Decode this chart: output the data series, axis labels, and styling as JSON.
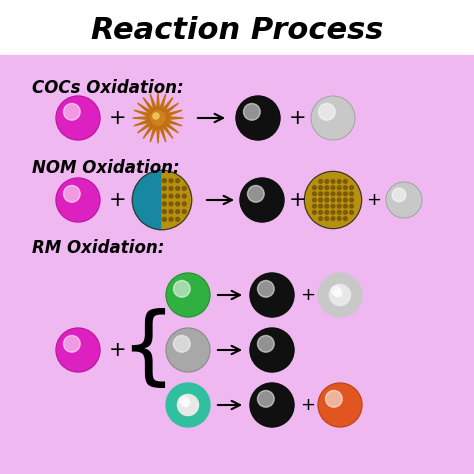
{
  "title": "Reaction Process",
  "title_fontsize": 22,
  "bg_pink": "#f0b8f0",
  "bg_white": "#ffffff",
  "label_fontsize": 12,
  "labels": [
    "COCs Oxidation:",
    "NOM Oxidation:",
    "RM Oxidation:"
  ],
  "pink_color": "#dd20c0",
  "black_color": "#101010",
  "white_sphere": "#c8c8c8",
  "green_sphere": "#30b040",
  "gray_sphere": "#a8a8a8",
  "teal_sphere": "#30c0a0",
  "orange_sphere": "#e05520",
  "starburst_color": "#d08020",
  "starburst_spoke": "#c07010",
  "nom_teal": "#1888a0",
  "nom_gold": "#b89010"
}
